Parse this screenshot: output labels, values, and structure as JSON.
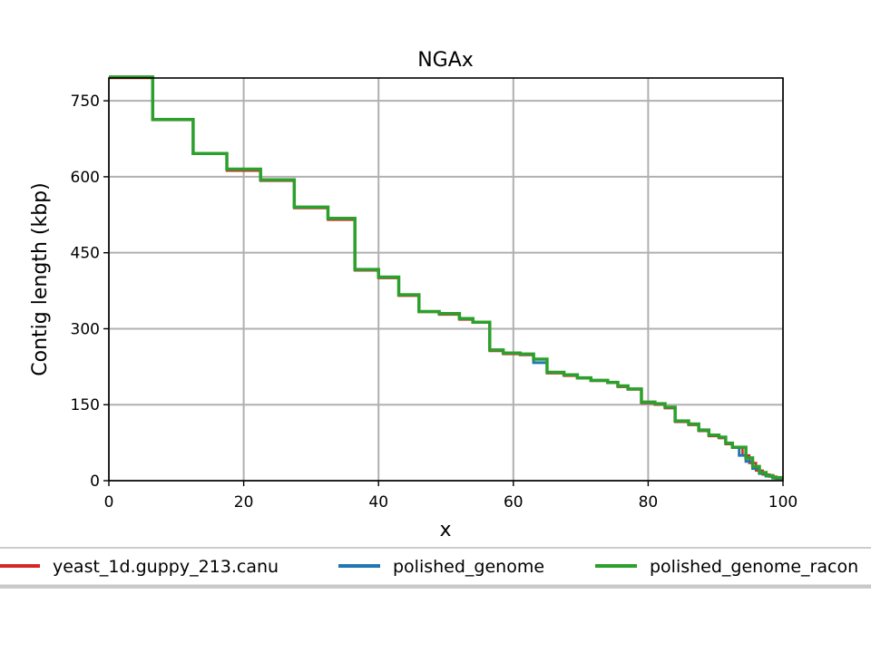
{
  "chart_data": {
    "type": "line",
    "title": "NGAx",
    "xlabel": "x",
    "ylabel": "Contig length (kbp)",
    "xlim": [
      0,
      100
    ],
    "ylim": [
      0,
      795
    ],
    "xticks": [
      0,
      20,
      40,
      60,
      80,
      100
    ],
    "yticks": [
      0,
      150,
      300,
      450,
      600,
      750
    ],
    "grid": true,
    "legend": "bottom",
    "series": [
      {
        "name": "yeast_1d.guppy_213.canu",
        "color": "#d62728",
        "points": [
          [
            0,
            795
          ],
          [
            6.5,
            795
          ],
          [
            6.5,
            712
          ],
          [
            12.5,
            712
          ],
          [
            12.5,
            645
          ],
          [
            17.5,
            645
          ],
          [
            17.5,
            612
          ],
          [
            22.5,
            612
          ],
          [
            22.5,
            592
          ],
          [
            27.5,
            592
          ],
          [
            27.5,
            538
          ],
          [
            32.5,
            538
          ],
          [
            32.5,
            515
          ],
          [
            36.5,
            515
          ],
          [
            36.5,
            415
          ],
          [
            40,
            415
          ],
          [
            40,
            400
          ],
          [
            43,
            400
          ],
          [
            43,
            365
          ],
          [
            46,
            365
          ],
          [
            46,
            333
          ],
          [
            49,
            333
          ],
          [
            49,
            328
          ],
          [
            52,
            328
          ],
          [
            52,
            318
          ],
          [
            54,
            318
          ],
          [
            54,
            312
          ],
          [
            56.5,
            312
          ],
          [
            56.5,
            256
          ],
          [
            58.5,
            256
          ],
          [
            58.5,
            250
          ],
          [
            61,
            250
          ],
          [
            61,
            248
          ],
          [
            63,
            248
          ],
          [
            63,
            240
          ],
          [
            65,
            240
          ],
          [
            65,
            212
          ],
          [
            67.5,
            212
          ],
          [
            67.5,
            207
          ],
          [
            69.5,
            207
          ],
          [
            69.5,
            202
          ],
          [
            71.5,
            202
          ],
          [
            71.5,
            197
          ],
          [
            74,
            197
          ],
          [
            74,
            193
          ],
          [
            75.5,
            193
          ],
          [
            75.5,
            185
          ],
          [
            77,
            185
          ],
          [
            77,
            180
          ],
          [
            79,
            180
          ],
          [
            79,
            153
          ],
          [
            81,
            153
          ],
          [
            81,
            150
          ],
          [
            82.5,
            150
          ],
          [
            82.5,
            143
          ],
          [
            84,
            143
          ],
          [
            84,
            116
          ],
          [
            86,
            116
          ],
          [
            86,
            110
          ],
          [
            87.5,
            110
          ],
          [
            87.5,
            98
          ],
          [
            89,
            98
          ],
          [
            89,
            88
          ],
          [
            90.5,
            88
          ],
          [
            90.5,
            84
          ],
          [
            91.5,
            84
          ],
          [
            91.5,
            72
          ],
          [
            92.5,
            72
          ],
          [
            92.5,
            65
          ],
          [
            94,
            65
          ],
          [
            94,
            50
          ],
          [
            95,
            50
          ],
          [
            95,
            35
          ],
          [
            96,
            35
          ],
          [
            96,
            20
          ],
          [
            97,
            20
          ],
          [
            97,
            12
          ],
          [
            98,
            12
          ],
          [
            98,
            8
          ],
          [
            99,
            8
          ],
          [
            99,
            4
          ],
          [
            100,
            4
          ]
        ]
      },
      {
        "name": "polished_genome",
        "color": "#1f77b4",
        "points": [
          [
            0,
            797
          ],
          [
            6.5,
            797
          ],
          [
            6.5,
            713
          ],
          [
            12.5,
            713
          ],
          [
            12.5,
            646
          ],
          [
            17.5,
            646
          ],
          [
            17.5,
            615
          ],
          [
            22.5,
            615
          ],
          [
            22.5,
            594
          ],
          [
            27.5,
            594
          ],
          [
            27.5,
            540
          ],
          [
            32.5,
            540
          ],
          [
            32.5,
            518
          ],
          [
            36.5,
            518
          ],
          [
            36.5,
            417
          ],
          [
            40,
            417
          ],
          [
            40,
            402
          ],
          [
            43,
            402
          ],
          [
            43,
            367
          ],
          [
            46,
            367
          ],
          [
            46,
            334
          ],
          [
            49,
            334
          ],
          [
            49,
            330
          ],
          [
            52,
            330
          ],
          [
            52,
            320
          ],
          [
            54,
            320
          ],
          [
            54,
            313
          ],
          [
            56.5,
            313
          ],
          [
            56.5,
            258
          ],
          [
            58.5,
            258
          ],
          [
            58.5,
            252
          ],
          [
            61,
            252
          ],
          [
            61,
            250
          ],
          [
            63,
            250
          ],
          [
            63,
            233
          ],
          [
            65,
            233
          ],
          [
            65,
            214
          ],
          [
            67.5,
            214
          ],
          [
            67.5,
            209
          ],
          [
            69.5,
            209
          ],
          [
            69.5,
            203
          ],
          [
            71.5,
            203
          ],
          [
            71.5,
            198
          ],
          [
            74,
            198
          ],
          [
            74,
            194
          ],
          [
            75.5,
            194
          ],
          [
            75.5,
            187
          ],
          [
            77,
            187
          ],
          [
            77,
            181
          ],
          [
            79,
            181
          ],
          [
            79,
            155
          ],
          [
            81,
            155
          ],
          [
            81,
            152
          ],
          [
            82.5,
            152
          ],
          [
            82.5,
            145
          ],
          [
            84,
            145
          ],
          [
            84,
            118
          ],
          [
            86,
            118
          ],
          [
            86,
            112
          ],
          [
            87.5,
            112
          ],
          [
            87.5,
            100
          ],
          [
            89,
            100
          ],
          [
            89,
            90
          ],
          [
            90.5,
            90
          ],
          [
            90.5,
            86
          ],
          [
            91.5,
            86
          ],
          [
            91.5,
            74
          ],
          [
            92.5,
            74
          ],
          [
            92.5,
            66
          ],
          [
            93.5,
            66
          ],
          [
            93.5,
            50
          ],
          [
            94.5,
            50
          ],
          [
            94.5,
            38
          ],
          [
            95.5,
            38
          ],
          [
            95.5,
            24
          ],
          [
            96.5,
            24
          ],
          [
            96.5,
            14
          ],
          [
            97.5,
            14
          ],
          [
            97.5,
            9
          ],
          [
            98.5,
            9
          ],
          [
            98.5,
            5
          ],
          [
            100,
            5
          ]
        ]
      },
      {
        "name": "polished_genome_racon",
        "color": "#2ca02c",
        "points": [
          [
            0,
            797
          ],
          [
            6.5,
            797
          ],
          [
            6.5,
            713
          ],
          [
            12.5,
            713
          ],
          [
            12.5,
            646
          ],
          [
            17.5,
            646
          ],
          [
            17.5,
            615
          ],
          [
            22.5,
            615
          ],
          [
            22.5,
            594
          ],
          [
            27.5,
            594
          ],
          [
            27.5,
            540
          ],
          [
            32.5,
            540
          ],
          [
            32.5,
            518
          ],
          [
            36.5,
            518
          ],
          [
            36.5,
            417
          ],
          [
            40,
            417
          ],
          [
            40,
            402
          ],
          [
            43,
            402
          ],
          [
            43,
            367
          ],
          [
            46,
            367
          ],
          [
            46,
            334
          ],
          [
            49,
            334
          ],
          [
            49,
            330
          ],
          [
            52,
            330
          ],
          [
            52,
            320
          ],
          [
            54,
            320
          ],
          [
            54,
            313
          ],
          [
            56.5,
            313
          ],
          [
            56.5,
            258
          ],
          [
            58.5,
            258
          ],
          [
            58.5,
            252
          ],
          [
            61,
            252
          ],
          [
            61,
            250
          ],
          [
            63,
            250
          ],
          [
            63,
            240
          ],
          [
            65,
            240
          ],
          [
            65,
            214
          ],
          [
            67.5,
            214
          ],
          [
            67.5,
            209
          ],
          [
            69.5,
            209
          ],
          [
            69.5,
            203
          ],
          [
            71.5,
            203
          ],
          [
            71.5,
            198
          ],
          [
            74,
            198
          ],
          [
            74,
            194
          ],
          [
            75.5,
            194
          ],
          [
            75.5,
            187
          ],
          [
            77,
            187
          ],
          [
            77,
            181
          ],
          [
            79,
            181
          ],
          [
            79,
            155
          ],
          [
            81,
            155
          ],
          [
            81,
            152
          ],
          [
            82.5,
            152
          ],
          [
            82.5,
            145
          ],
          [
            84,
            145
          ],
          [
            84,
            118
          ],
          [
            86,
            118
          ],
          [
            86,
            112
          ],
          [
            87.5,
            112
          ],
          [
            87.5,
            100
          ],
          [
            89,
            100
          ],
          [
            89,
            90
          ],
          [
            90.5,
            90
          ],
          [
            90.5,
            86
          ],
          [
            91.5,
            86
          ],
          [
            91.5,
            74
          ],
          [
            92.5,
            74
          ],
          [
            92.5,
            66
          ],
          [
            94.5,
            66
          ],
          [
            94.5,
            45
          ],
          [
            95.5,
            45
          ],
          [
            95.5,
            28
          ],
          [
            96.5,
            28
          ],
          [
            96.5,
            16
          ],
          [
            97.5,
            16
          ],
          [
            97.5,
            10
          ],
          [
            98.5,
            10
          ],
          [
            98.5,
            6
          ],
          [
            100,
            6
          ]
        ]
      }
    ]
  }
}
